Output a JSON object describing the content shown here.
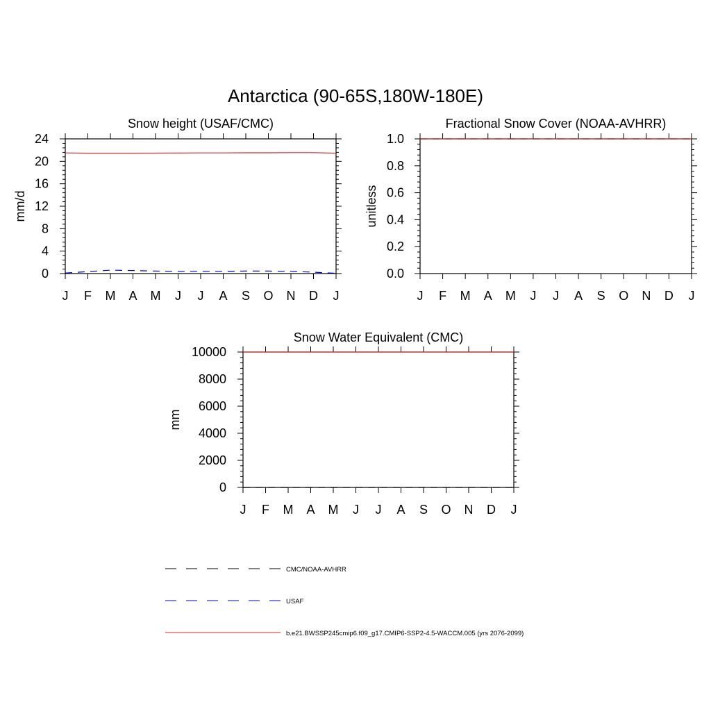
{
  "figure": {
    "title": "Antarctica (90-65S,180W-180E)"
  },
  "chart_data": [
    {
      "type": "line",
      "title": "Snow height (USAF/CMC)",
      "xlabel": "",
      "ylabel": "mm/d",
      "categories": [
        "J",
        "F",
        "M",
        "A",
        "M",
        "J",
        "J",
        "A",
        "S",
        "O",
        "N",
        "D",
        "J"
      ],
      "ylim": [
        0,
        24
      ],
      "yticks": [
        0,
        4,
        8,
        12,
        16,
        20,
        24
      ],
      "ytick_labels": [
        "0",
        "4",
        "8",
        "12",
        "16",
        "20",
        "24"
      ],
      "grid": false,
      "series": [
        {
          "name": "b.e21.BWSSP245cmip6.f09_g17.CMIP6-SSP2-4.5-WACCM.005 (yrs 2076-2099)",
          "color": "#d62728",
          "dash": "solid",
          "values": [
            21.5,
            21.45,
            21.45,
            21.45,
            21.47,
            21.48,
            21.5,
            21.5,
            21.52,
            21.52,
            21.55,
            21.55,
            21.45
          ]
        },
        {
          "name": "USAF",
          "color": "#0000cc",
          "dash": "dashed",
          "values": [
            0.1,
            0.35,
            0.6,
            0.55,
            0.45,
            0.4,
            0.4,
            0.4,
            0.45,
            0.45,
            0.4,
            0.25,
            0.05
          ]
        }
      ]
    },
    {
      "type": "line",
      "title": "Fractional Snow Cover (NOAA-AVHRR)",
      "xlabel": "",
      "ylabel": "unitless",
      "categories": [
        "J",
        "F",
        "M",
        "A",
        "M",
        "J",
        "J",
        "A",
        "S",
        "O",
        "N",
        "D",
        "J"
      ],
      "ylim": [
        0,
        1
      ],
      "yticks": [
        0,
        0.2,
        0.4,
        0.6,
        0.8,
        1.0
      ],
      "ytick_labels": [
        "0.0",
        "0.2",
        "0.4",
        "0.6",
        "0.8",
        "1.0"
      ],
      "grid": false,
      "series": [
        {
          "name": "CMC/NOAA-AVHRR",
          "color": "#000000",
          "dash": "dashed",
          "values": [
            1,
            1,
            1,
            1,
            1,
            1,
            1,
            1,
            1,
            1,
            1,
            1,
            1
          ]
        },
        {
          "name": "b.e21.BWSSP245cmip6.f09_g17.CMIP6-SSP2-4.5-WACCM.005 (yrs 2076-2099)",
          "color": "#d62728",
          "dash": "solid",
          "values": [
            1,
            1,
            1,
            1,
            1,
            1,
            1,
            1,
            1,
            1,
            1,
            1,
            1
          ]
        }
      ]
    },
    {
      "type": "line",
      "title": "Snow Water Equivalent (CMC)",
      "xlabel": "",
      "ylabel": "mm",
      "categories": [
        "J",
        "F",
        "M",
        "A",
        "M",
        "J",
        "J",
        "A",
        "S",
        "O",
        "N",
        "D",
        "J"
      ],
      "ylim": [
        0,
        10000
      ],
      "yticks": [
        0,
        2000,
        4000,
        6000,
        8000,
        10000
      ],
      "ytick_labels": [
        "0",
        "2000",
        "4000",
        "6000",
        "8000",
        "10000"
      ],
      "grid": false,
      "series": [
        {
          "name": "b.e21.BWSSP245cmip6.f09_g17.CMIP6-SSP2-4.5-WACCM.005 (yrs 2076-2099)",
          "color": "#d62728",
          "dash": "solid",
          "values": [
            10000,
            10000,
            10000,
            10000,
            10000,
            10000,
            10000,
            10000,
            10000,
            10000,
            10000,
            10000,
            10000
          ]
        },
        {
          "name": "CMC/NOAA-AVHRR",
          "color": "#000000",
          "dash": "dashed",
          "values": [
            0,
            0,
            0,
            0,
            0,
            0,
            0,
            0,
            0,
            0,
            0,
            0,
            0
          ]
        }
      ]
    }
  ],
  "legend": {
    "placement": "bottom",
    "entries": [
      {
        "label": "CMC/NOAA-AVHRR",
        "color": "#000000",
        "dash": "dashed"
      },
      {
        "label": "USAF",
        "color": "#0000cc",
        "dash": "dashed"
      },
      {
        "label": "b.e21.BWSSP245cmip6.f09_g17.CMIP6-SSP2-4.5-WACCM.005 (yrs 2076-2099)",
        "color": "#d62728",
        "dash": "solid"
      }
    ]
  }
}
